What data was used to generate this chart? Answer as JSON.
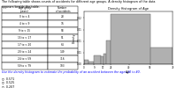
{
  "title_line1": "The following table shows counts of accidents for different age groups. A density histogram of the data",
  "title_line2": "appears beside the table.",
  "question": "Use the density histogram to estimate the probability of an accident between the ages 20 to 40.",
  "options": [
    "0.571",
    "0.525",
    "0.207"
  ],
  "table_col1_header": "Age group\n(years)",
  "table_col2_header": "Number\nof accidents",
  "age_groups": [
    "0 to < 4",
    "4 to < 9",
    "9 to < 15",
    "15 to < 17",
    "17 to < 20",
    "20 to < 24",
    "24 to < 59",
    "59 to < 79"
  ],
  "counts": [
    28,
    16,
    58,
    51,
    64,
    149,
    316,
    103
  ],
  "hist_title": "Density Histogram of Age",
  "hist_xlabel": "Age",
  "hist_ylabel": "Density",
  "bin_edges": [
    0,
    4,
    9,
    15,
    17,
    20,
    24,
    59,
    79
  ],
  "bar_color": "#b0b0b0",
  "bar_edge_color": "#666666",
  "bg_color": "#ffffff",
  "hist_box_color": "#d0c8b0",
  "xtick_labels": [
    "0",
    "9",
    "17",
    "24",
    "40",
    "59",
    "79"
  ],
  "xtick_positions": [
    0,
    9,
    17,
    24,
    40,
    59,
    79
  ]
}
